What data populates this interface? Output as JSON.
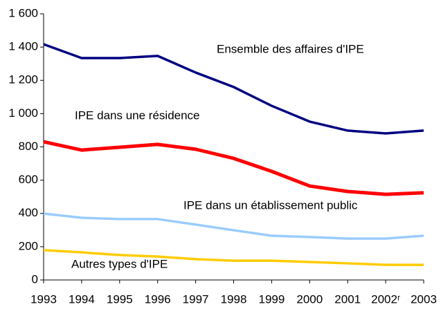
{
  "chart_data": {
    "type": "line",
    "categories": [
      "1993",
      "1994",
      "1995",
      "1996",
      "1997",
      "1998",
      "1999",
      "2000",
      "2001",
      "2002ʳ",
      "2003"
    ],
    "series": [
      {
        "name": "Ensemble des affaires d'IPE",
        "color": "#000080",
        "values": [
          1417,
          1334,
          1334,
          1347,
          1247,
          1160,
          1047,
          952,
          898,
          881,
          898
        ]
      },
      {
        "name": "IPE dans une résidence",
        "color": "#ff0000",
        "values": [
          831,
          781,
          798,
          815,
          786,
          731,
          653,
          565,
          532,
          515,
          524
        ]
      },
      {
        "name": "IPE dans un établissement public",
        "color": "#99ccff",
        "values": [
          399,
          374,
          366,
          366,
          333,
          299,
          266,
          258,
          249,
          249,
          266
        ]
      },
      {
        "name": "Autres types d'IPE",
        "color": "#ffcc00",
        "values": [
          179,
          166,
          150,
          141,
          125,
          116,
          116,
          108,
          100,
          91,
          91
        ]
      }
    ],
    "ylim": [
      0,
      1600
    ],
    "yticks": [
      0,
      200,
      400,
      600,
      800,
      {
        "value": 1000,
        "label": "1 000"
      },
      {
        "value": 1200,
        "label": "1 200"
      },
      {
        "value": 1400,
        "label": "1 400"
      },
      {
        "value": 1600,
        "label": "1 600"
      }
    ],
    "grid": false
  }
}
